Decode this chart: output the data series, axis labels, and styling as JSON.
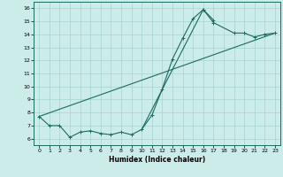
{
  "bg_color": "#ccecea",
  "grid_color": "#a8d4d0",
  "line_color": "#1a6b60",
  "xlabel": "Humidex (Indice chaleur)",
  "xlim": [
    -0.5,
    23.5
  ],
  "ylim": [
    5.5,
    16.5
  ],
  "xticks": [
    0,
    1,
    2,
    3,
    4,
    5,
    6,
    7,
    8,
    9,
    10,
    11,
    12,
    13,
    14,
    15,
    16,
    17,
    18,
    19,
    20,
    21,
    22,
    23
  ],
  "yticks": [
    6,
    7,
    8,
    9,
    10,
    11,
    12,
    13,
    14,
    15,
    16
  ],
  "curve1_x": [
    0,
    1,
    2,
    3,
    4,
    5,
    6,
    7,
    8,
    9,
    10,
    11,
    12,
    13,
    14,
    15,
    16,
    17
  ],
  "curve1_y": [
    7.7,
    7.0,
    7.0,
    6.1,
    6.5,
    6.6,
    6.4,
    6.3,
    6.5,
    6.3,
    6.7,
    7.8,
    9.8,
    12.1,
    13.7,
    15.2,
    15.9,
    15.1
  ],
  "curve3_x": [
    0,
    1,
    2,
    3,
    4,
    5,
    6,
    7,
    8,
    9,
    10,
    16,
    17,
    19,
    20,
    21,
    22,
    23
  ],
  "curve3_y": [
    7.7,
    7.0,
    7.0,
    6.1,
    6.5,
    6.6,
    6.4,
    6.3,
    6.5,
    6.3,
    6.7,
    15.9,
    14.9,
    14.1,
    14.1,
    13.8,
    14.0,
    14.1
  ],
  "line2_x": [
    0,
    23
  ],
  "line2_y": [
    7.7,
    14.1
  ]
}
